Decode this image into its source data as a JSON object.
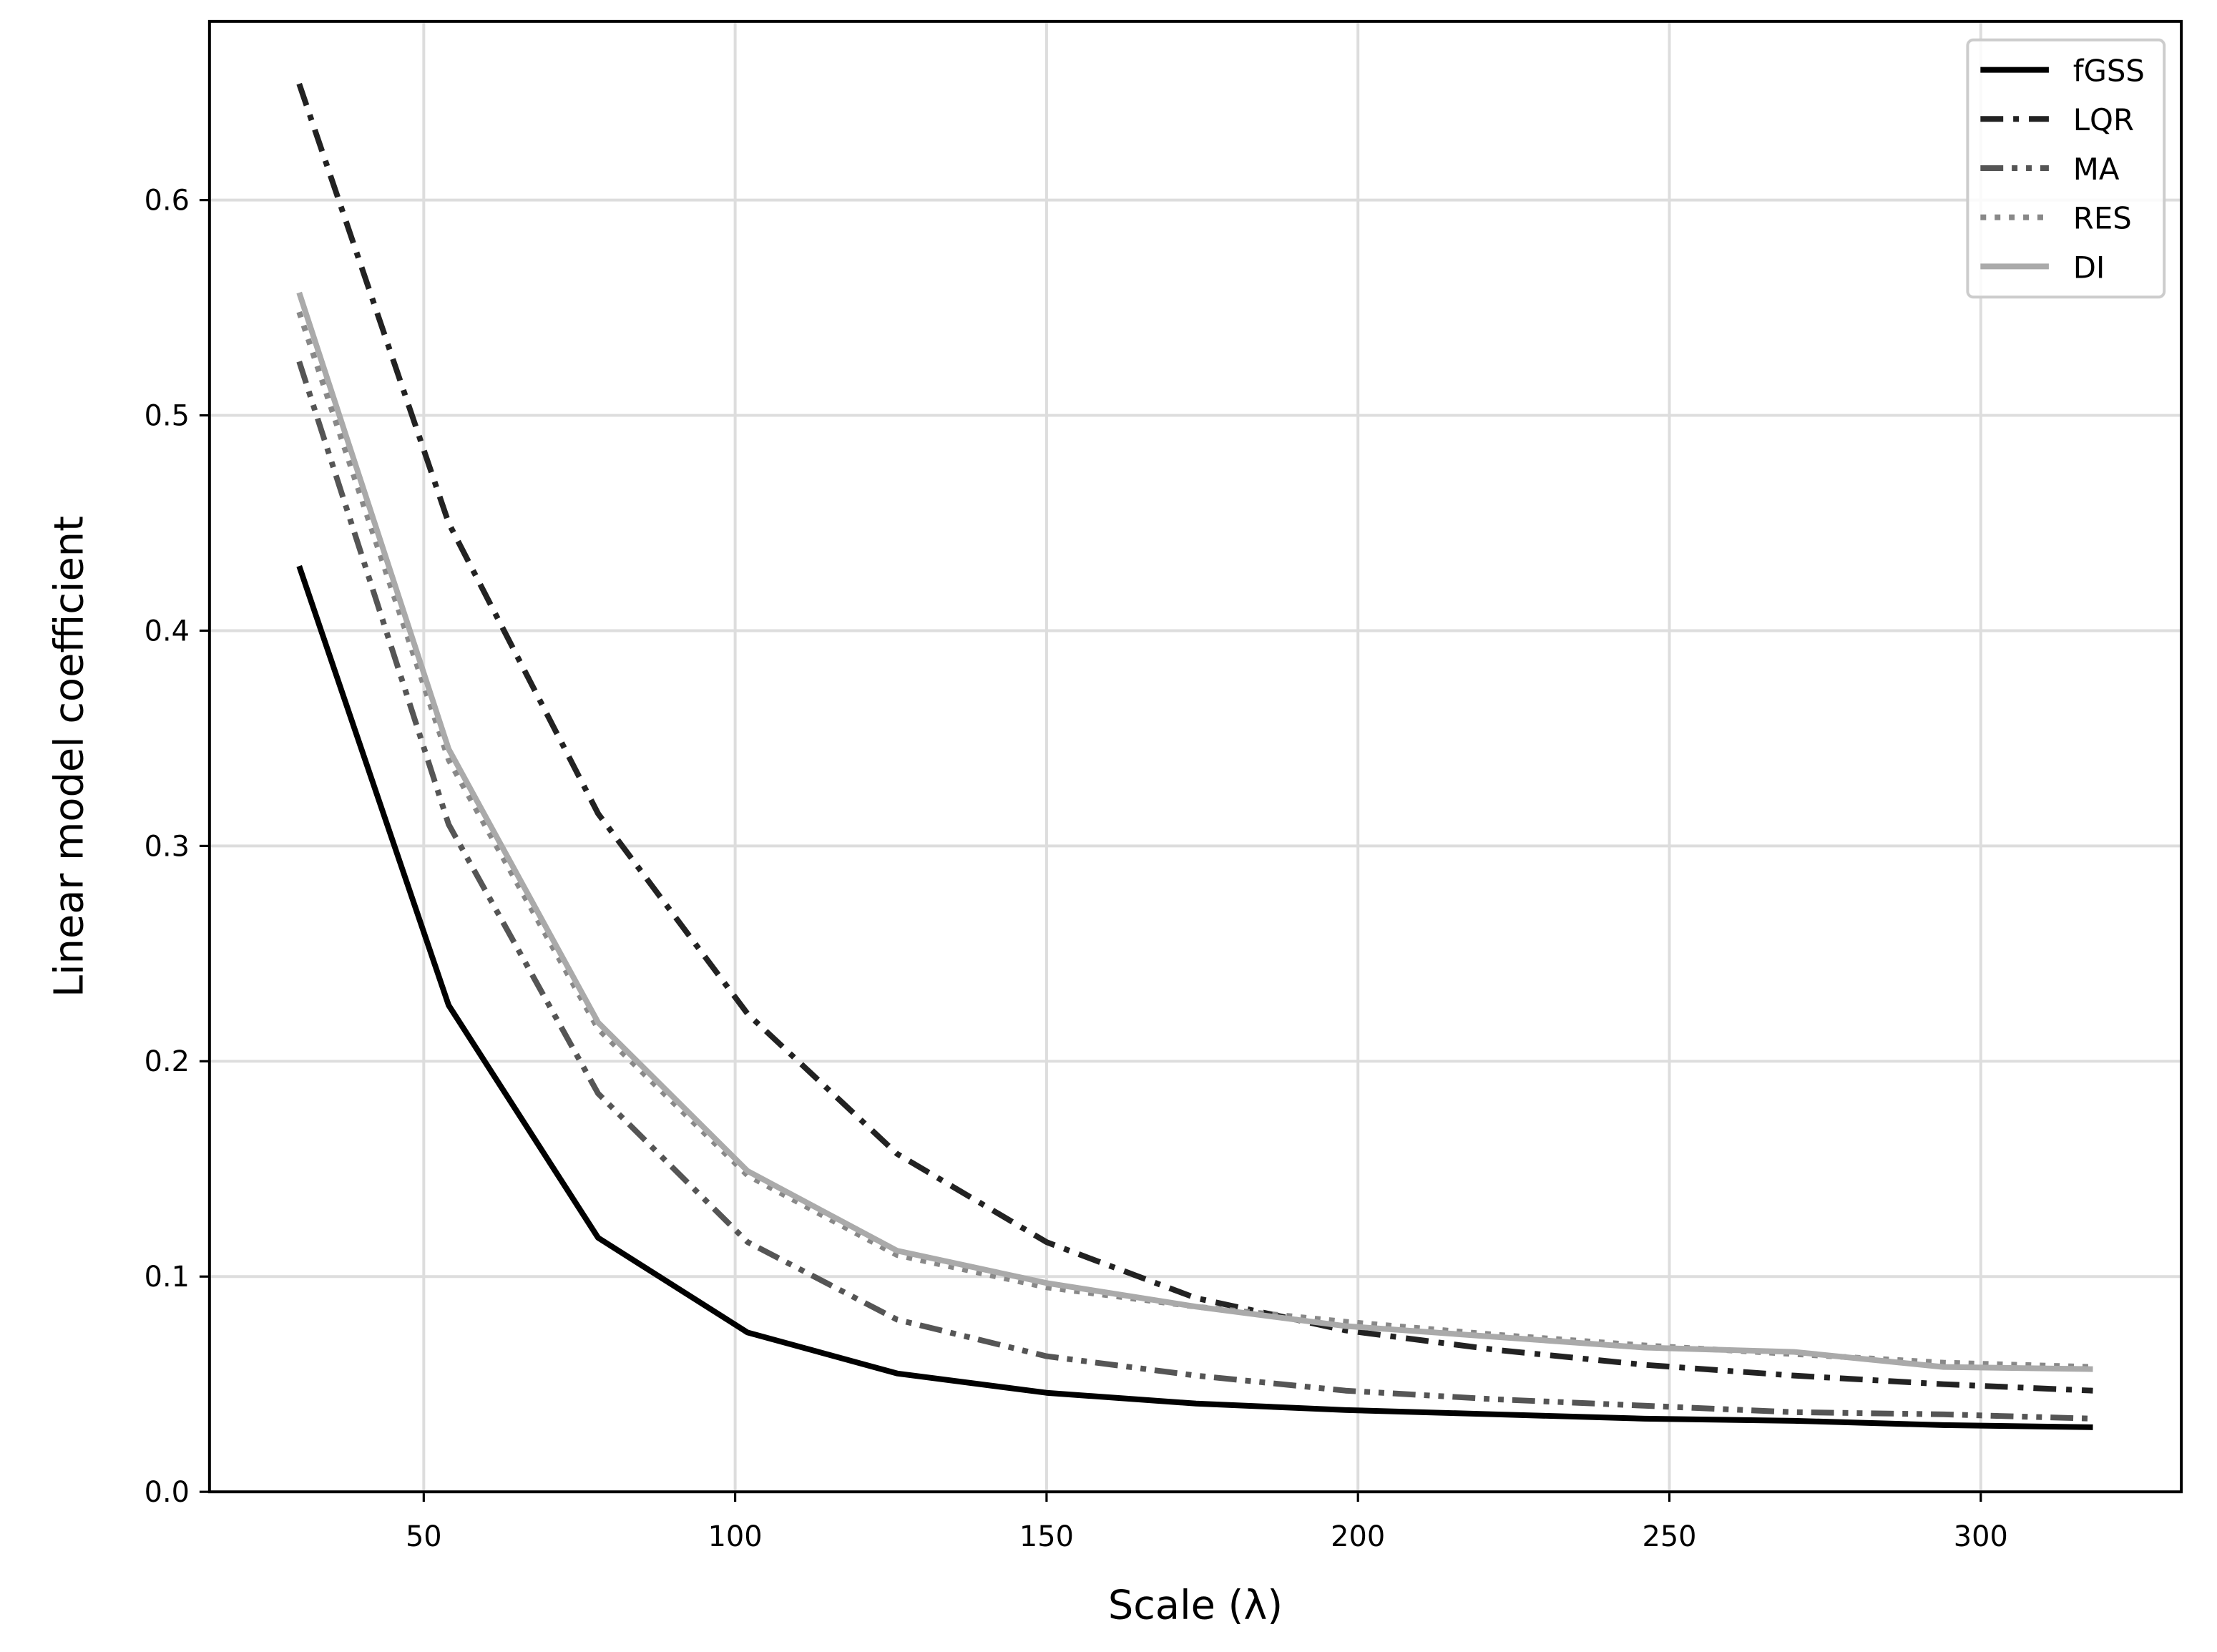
{
  "chart_data": {
    "type": "line",
    "x_label": "Scale (λ)",
    "y_label": "Linear model coefficient",
    "x": [
      30,
      54,
      78,
      102,
      126,
      150,
      174,
      198,
      222,
      246,
      270,
      294,
      318
    ],
    "series": [
      {
        "name": "fGSS",
        "color": "#000000",
        "linestyle": "solid",
        "values": [
          0.43,
          0.226,
          0.118,
          0.074,
          0.055,
          0.046,
          0.041,
          0.038,
          0.036,
          0.034,
          0.033,
          0.031,
          0.03
        ]
      },
      {
        "name": "LQR",
        "color": "#222222",
        "linestyle": "dashdot",
        "values": [
          0.654,
          0.45,
          0.315,
          0.222,
          0.157,
          0.116,
          0.09,
          0.075,
          0.066,
          0.059,
          0.054,
          0.05,
          0.047
        ]
      },
      {
        "name": "MA",
        "color": "#555555",
        "linestyle": "dashdotdot",
        "values": [
          0.525,
          0.31,
          0.185,
          0.116,
          0.08,
          0.063,
          0.054,
          0.047,
          0.043,
          0.04,
          0.037,
          0.036,
          0.034
        ]
      },
      {
        "name": "RES",
        "color": "#888888",
        "linestyle": "dotted",
        "values": [
          0.548,
          0.34,
          0.215,
          0.147,
          0.11,
          0.095,
          0.086,
          0.079,
          0.073,
          0.068,
          0.064,
          0.06,
          0.058
        ]
      },
      {
        "name": "DI",
        "color": "#aaaaaa",
        "linestyle": "solid",
        "values": [
          0.557,
          0.345,
          0.218,
          0.149,
          0.112,
          0.097,
          0.086,
          0.077,
          0.072,
          0.067,
          0.065,
          0.058,
          0.057
        ]
      }
    ],
    "xlim": [
      15.6,
      332.2
    ],
    "ylim": [
      0,
      0.683
    ],
    "xticks": [
      50,
      100,
      150,
      200,
      250,
      300
    ],
    "yticks": [
      {
        "value": 0,
        "label": "0.0"
      },
      0.1,
      0.2,
      0.3,
      0.4,
      0.5,
      0.6
    ],
    "grid": true,
    "legend": "upper-right"
  }
}
